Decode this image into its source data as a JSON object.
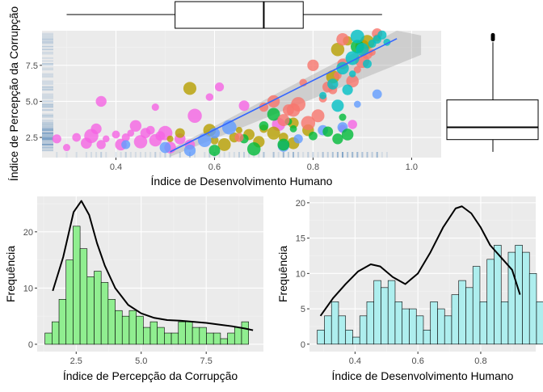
{
  "chart_data": [
    {
      "id": "scatter",
      "type": "scatter",
      "title": "",
      "xlabel": "Índice de Desenvolvimento Humano",
      "ylabel": "Índice de Percepção da Corrupção",
      "xlim": [
        0.25,
        1.06
      ],
      "ylim": [
        1.1,
        9.9
      ],
      "xticks": [
        "0.4",
        "0.6",
        "0.8",
        "1.0"
      ],
      "yticks": [
        "2.5",
        "5.0",
        "7.5"
      ],
      "grid": true,
      "trend": {
        "x": [
          0.51,
          0.97
        ],
        "y": [
          1.5,
          9.35
        ]
      },
      "series": [
        {
          "color": "#f564e3",
          "points": [
            [
              0.28,
              2.4
            ],
            [
              0.3,
              1.8
            ],
            [
              0.32,
              2.5
            ],
            [
              0.34,
              2.1
            ],
            [
              0.36,
              3.1
            ],
            [
              0.38,
              2.4
            ],
            [
              0.4,
              2.7
            ],
            [
              0.41,
              2.0
            ],
            [
              0.43,
              2.8
            ],
            [
              0.45,
              2.2
            ],
            [
              0.47,
              3.0
            ],
            [
              0.48,
              2.3
            ],
            [
              0.37,
              2.0
            ],
            [
              0.42,
              2.5
            ],
            [
              0.46,
              2.8
            ],
            [
              0.49,
              2.6
            ],
            [
              0.51,
              1.8
            ],
            [
              0.53,
              2.4
            ],
            [
              0.35,
              2.6
            ],
            [
              0.44,
              3.3
            ],
            [
              0.5,
              2.8
            ],
            [
              0.55,
              2.0
            ],
            [
              0.56,
              4.0
            ],
            [
              0.48,
              4.6
            ],
            [
              0.37,
              5.0
            ],
            [
              0.59,
              5.3
            ],
            [
              0.61,
              6.0
            ],
            [
              0.66,
              4.7
            ],
            [
              0.73,
              3.4
            ],
            [
              0.86,
              3.1
            ],
            [
              0.88,
              3.4
            ]
          ]
        },
        {
          "color": "#b79f00",
          "points": [
            [
              0.51,
              2.4
            ],
            [
              0.53,
              2.8
            ],
            [
              0.55,
              5.9
            ],
            [
              0.59,
              3.0
            ],
            [
              0.6,
              2.3
            ],
            [
              0.62,
              2.0
            ],
            [
              0.64,
              2.5
            ],
            [
              0.65,
              3.0
            ],
            [
              0.67,
              2.7
            ],
            [
              0.69,
              2.2
            ],
            [
              0.7,
              3.1
            ],
            [
              0.72,
              2.8
            ],
            [
              0.74,
              2.5
            ],
            [
              0.76,
              2.1
            ],
            [
              0.76,
              3.5
            ],
            [
              0.79,
              3.0
            ],
            [
              0.85,
              8.6
            ],
            [
              0.9,
              8.8
            ],
            [
              0.91,
              9.1
            ],
            [
              0.93,
              9.4
            ],
            [
              0.87,
              9.2
            ],
            [
              0.84,
              6.7
            ]
          ]
        },
        {
          "color": "#619cff",
          "points": [
            [
              0.42,
              2.0
            ],
            [
              0.5,
              1.8
            ],
            [
              0.55,
              1.6
            ],
            [
              0.58,
              2.3
            ],
            [
              0.6,
              2.8
            ],
            [
              0.63,
              3.2
            ],
            [
              0.74,
              1.9
            ],
            [
              0.77,
              2.4
            ],
            [
              0.82,
              3.0
            ],
            [
              0.86,
              3.2
            ],
            [
              0.89,
              4.8
            ],
            [
              0.93,
              5.5
            ]
          ]
        },
        {
          "color": "#00ba38",
          "points": [
            [
              0.6,
              1.6
            ],
            [
              0.66,
              2.4
            ],
            [
              0.68,
              1.7
            ],
            [
              0.7,
              3.3
            ],
            [
              0.72,
              4.1
            ],
            [
              0.74,
              2.0
            ],
            [
              0.75,
              3.6
            ],
            [
              0.76,
              3.1
            ],
            [
              0.8,
              2.6
            ],
            [
              0.83,
              2.9
            ],
            [
              0.85,
              2.4
            ],
            [
              0.87,
              2.7
            ],
            [
              0.89,
              8.8
            ],
            [
              0.86,
              3.9
            ]
          ]
        },
        {
          "color": "#f8766d",
          "points": [
            [
              0.65,
              2.5
            ],
            [
              0.7,
              4.6
            ],
            [
              0.72,
              5.0
            ],
            [
              0.75,
              4.4
            ],
            [
              0.77,
              4.8
            ],
            [
              0.78,
              6.3
            ],
            [
              0.8,
              7.5
            ],
            [
              0.81,
              4.0
            ],
            [
              0.82,
              5.2
            ],
            [
              0.83,
              6.0
            ],
            [
              0.84,
              5.8
            ],
            [
              0.85,
              6.8
            ],
            [
              0.86,
              7.6
            ],
            [
              0.88,
              6.4
            ],
            [
              0.89,
              7.2
            ],
            [
              0.9,
              7.8
            ],
            [
              0.91,
              8.3
            ],
            [
              0.92,
              8.4
            ],
            [
              0.74,
              3.7
            ],
            [
              0.76,
              4.4
            ],
            [
              0.79,
              3.5
            ],
            [
              0.86,
              9.3
            ],
            [
              0.93,
              9.7
            ]
          ]
        },
        {
          "color": "#00bfc4",
          "points": [
            [
              0.82,
              5.4
            ],
            [
              0.84,
              6.2
            ],
            [
              0.86,
              7.3
            ],
            [
              0.88,
              8.0
            ],
            [
              0.9,
              8.6
            ],
            [
              0.92,
              9.0
            ],
            [
              0.93,
              9.3
            ],
            [
              0.94,
              9.6
            ],
            [
              0.89,
              9.5
            ],
            [
              0.91,
              7.6
            ],
            [
              0.87,
              5.8
            ],
            [
              0.85,
              4.7
            ],
            [
              0.95,
              9.1
            ],
            [
              0.88,
              6.9
            ]
          ]
        }
      ]
    },
    {
      "id": "boxplot-idh",
      "type": "box",
      "orientation": "horizontal",
      "whisker_low": 0.3,
      "q1": 0.52,
      "median": 0.7,
      "q3": 0.78,
      "whisker_high": 0.94
    },
    {
      "id": "boxplot-ipc",
      "type": "box",
      "orientation": "vertical",
      "whisker_low": 1.5,
      "q1": 2.35,
      "median": 3.2,
      "q3": 5.1,
      "whisker_high": 9.1,
      "outliers": [
        9.3,
        9.4,
        9.5,
        9.6
      ]
    },
    {
      "id": "hist-ipc",
      "type": "bar",
      "title": "",
      "xlabel": "Índice de Percepção da Corrupção",
      "ylabel": "Frequência",
      "xlim": [
        1.0,
        9.7
      ],
      "ylim": [
        -1.3,
        26.3
      ],
      "bar_start": 1.3,
      "bin_width": 0.27,
      "values": [
        2,
        4,
        8,
        15,
        21,
        17,
        12,
        13,
        11,
        8,
        6,
        5,
        6,
        5,
        3,
        4,
        3,
        2,
        2,
        4,
        4,
        3,
        3,
        2,
        2,
        1,
        2,
        3,
        4
      ],
      "xticks": [
        "2.5",
        "5.0",
        "7.5"
      ],
      "yticks": [
        "0",
        "10",
        "20"
      ],
      "fill": "#90ee90",
      "curve": {
        "x": [
          1.6,
          2.0,
          2.4,
          2.7,
          3.0,
          3.3,
          3.6,
          4.0,
          4.5,
          5.0,
          5.5,
          6.0,
          6.5,
          7.0,
          7.5,
          8.0,
          8.5,
          9.0,
          9.3
        ],
        "y": [
          9.5,
          15.5,
          23.5,
          25.5,
          23,
          18,
          14,
          10,
          7,
          5.5,
          4.7,
          4.3,
          4.2,
          4.0,
          3.8,
          3.5,
          3.2,
          2.8,
          2.5
        ]
      }
    },
    {
      "id": "hist-idh",
      "type": "bar",
      "title": "",
      "xlabel": "Índice de Desenvolvimento Humano",
      "ylabel": "Frequência",
      "xlim": [
        0.255,
        0.975
      ],
      "ylim": [
        -1.05,
        20.9
      ],
      "bar_start": 0.28,
      "bin_width": 0.0225,
      "values": [
        2,
        4,
        6,
        4,
        2,
        1,
        4,
        6,
        9,
        8,
        9,
        6,
        5,
        5,
        4,
        2,
        6,
        5,
        4,
        7,
        9,
        8,
        11,
        6,
        12,
        14,
        6,
        13,
        14,
        13,
        10,
        6,
        8,
        7,
        6,
        9,
        13,
        2,
        1
      ],
      "xticks": [
        "0.4",
        "0.6",
        "0.8"
      ],
      "yticks": [
        "0",
        "5",
        "10",
        "15",
        "20"
      ],
      "fill": "#aeeeee",
      "curve": {
        "x": [
          0.29,
          0.33,
          0.37,
          0.41,
          0.45,
          0.48,
          0.52,
          0.56,
          0.6,
          0.64,
          0.68,
          0.72,
          0.74,
          0.77,
          0.8,
          0.83,
          0.87,
          0.9,
          0.925
        ],
        "y": [
          4,
          6.5,
          8.5,
          10.3,
          11.3,
          11,
          9.5,
          8.5,
          10,
          13,
          16.5,
          19.2,
          19.5,
          18.5,
          16.5,
          14,
          12,
          10.5,
          7
        ]
      }
    }
  ]
}
